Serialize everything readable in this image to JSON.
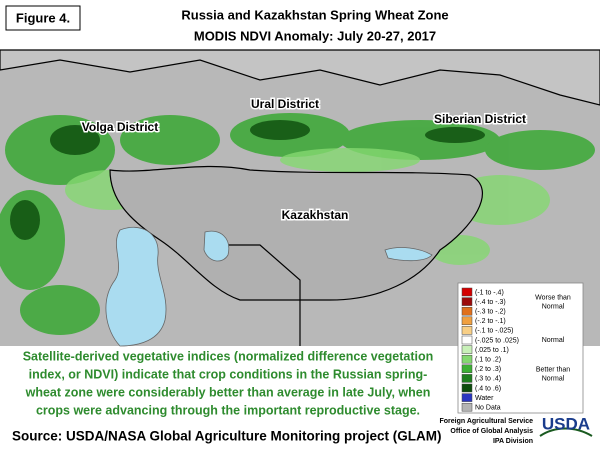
{
  "figure_label": "Figure 4.",
  "title": [
    "Russia and Kazakhstan Spring Wheat Zone",
    "MODIS NDVI Anomaly: July 20-27, 2017"
  ],
  "regions": [
    "Volga District",
    "Ural District",
    "Siberian District",
    "Kazakhstan"
  ],
  "legend": {
    "items": [
      {
        "label": "(-1 to -.4)",
        "color": "#d40000"
      },
      {
        "label": "(-.4 to -.3)",
        "color": "#9c0a0a"
      },
      {
        "label": "(-.3 to -.2)",
        "color": "#e0701c"
      },
      {
        "label": "(-.2 to -.1)",
        "color": "#f0a040"
      },
      {
        "label": "(-.1 to -.025)",
        "color": "#f8cf86"
      },
      {
        "label": "(-.025 to .025)",
        "color": "#ffffff"
      },
      {
        "label": "(.025 to .1)",
        "color": "#c8f0b8"
      },
      {
        "label": "(.1 to .2)",
        "color": "#84d870"
      },
      {
        "label": "(.2 to .3)",
        "color": "#3cb034"
      },
      {
        "label": "(.3 to .4)",
        "color": "#1e7e1e"
      },
      {
        "label": "(.4 to .6)",
        "color": "#0c4c0c"
      },
      {
        "label": "Water",
        "color": "#2a36c0"
      },
      {
        "label": "No Data",
        "color": "#b4b4b4"
      }
    ],
    "groups": [
      "Worse than Normal",
      "Normal",
      "Better than Normal"
    ]
  },
  "caption": [
    "Satellite-derived vegetative indices (normalized difference vegetation",
    "index, or NDVI) indicate that crop conditions in the Russian spring-",
    "wheat zone were considerably better than average in late July, when",
    "crops were advancing through the important reproductive stage."
  ],
  "source": "Source:  USDA/NASA Global Agriculture Monitoring project (GLAM)",
  "agency": [
    "Foreign Agricultural Service",
    "Office of Global Analysis",
    "IPA Division"
  ],
  "logo": "USDA"
}
